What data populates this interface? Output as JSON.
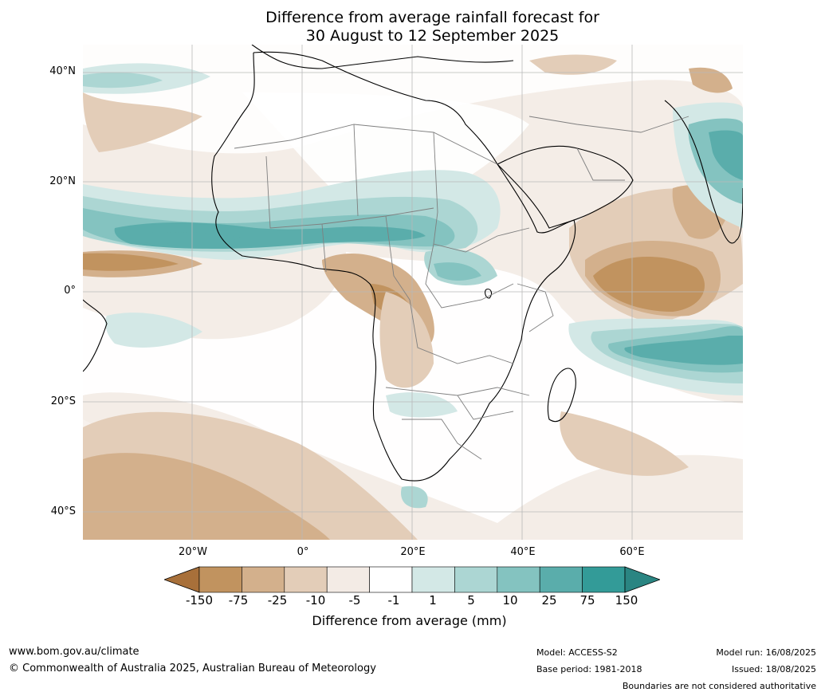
{
  "title": {
    "line1": "Difference from average rainfall forecast for",
    "line2": "30 August to 12 September 2025"
  },
  "map": {
    "projection": "equirectangular",
    "extent_lon": [
      -40,
      80
    ],
    "extent_lat": [
      -45,
      45
    ],
    "gridlines": true,
    "lat_labels": [
      "40°N",
      "20°N",
      "0°",
      "20°S",
      "40°S"
    ],
    "lon_labels": [
      "20°W",
      "0°",
      "20°E",
      "40°E",
      "60°E"
    ],
    "boundaries": "country borders shown in grey, coastlines in black"
  },
  "colorbar": {
    "labels": [
      "-150",
      "-75",
      "-25",
      "-10",
      "-5",
      "-1",
      "1",
      "5",
      "10",
      "25",
      "75",
      "150"
    ],
    "colors": [
      "#a8703a",
      "#c1935f",
      "#d3b08c",
      "#e3cdb8",
      "#f3ebe5",
      "#ffffff",
      "#d3e8e6",
      "#acd6d3",
      "#84c3c0",
      "#5aadab",
      "#339b98",
      "#2a8582"
    ],
    "title": "Difference from average (mm)"
  },
  "footer": {
    "website": "www.bom.gov.au/climate",
    "copyright": "© Commonwealth of Australia 2025, Australian Bureau of Meteorology",
    "model": "Model: ACCESS-S2",
    "base_period": "Base period: 1981-2018",
    "model_run": "Model run: 16/08/2025",
    "issued": "Issued: 18/08/2025",
    "boundaries_note": "Boundaries are not considered authoritative"
  }
}
